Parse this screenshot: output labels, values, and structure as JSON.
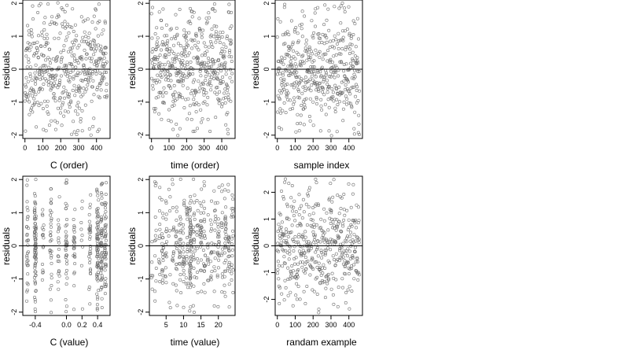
{
  "chart_data": [
    {
      "type": "scatter",
      "xlabel": "C (order)",
      "ylabel": "residuals",
      "xlim": [
        -12,
        476
      ],
      "ylim": [
        -2.1,
        2.1
      ],
      "xticks": [
        0,
        100,
        200,
        300,
        400
      ],
      "xtick_labels": [
        "0",
        "100",
        "200",
        "300",
        "400"
      ],
      "yticks": [
        -2,
        -1,
        0,
        1,
        2
      ],
      "ytick_labels": [
        "-2",
        "-1",
        "0",
        "1",
        "2"
      ],
      "hline": 0,
      "grid": false,
      "series": [
        {
          "gen": "index",
          "n": 460,
          "seed": 11
        }
      ]
    },
    {
      "type": "scatter",
      "xlabel": "time (order)",
      "ylabel": "residuals",
      "xlim": [
        -12,
        476
      ],
      "ylim": [
        -2.1,
        2.1
      ],
      "xticks": [
        0,
        100,
        200,
        300,
        400
      ],
      "xtick_labels": [
        "0",
        "100",
        "200",
        "300",
        "400"
      ],
      "yticks": [
        -2,
        -1,
        0,
        1,
        2
      ],
      "ytick_labels": [
        "-2",
        "-1",
        "0",
        "1",
        "2"
      ],
      "hline": 0,
      "grid": false,
      "series": [
        {
          "gen": "index",
          "n": 460,
          "seed": 23
        }
      ]
    },
    {
      "type": "scatter",
      "xlabel": "sample index",
      "ylabel": "residuals",
      "xlim": [
        -12,
        476
      ],
      "ylim": [
        -2.1,
        2.1
      ],
      "xticks": [
        0,
        100,
        200,
        300,
        400
      ],
      "xtick_labels": [
        "0",
        "100",
        "200",
        "300",
        "400"
      ],
      "yticks": [
        -2,
        -1,
        0,
        1,
        2
      ],
      "ytick_labels": [
        "-2",
        "-1",
        "0",
        "1",
        "2"
      ],
      "hline": 0,
      "grid": false,
      "series": [
        {
          "gen": "index",
          "n": 460,
          "seed": 37
        }
      ]
    },
    {
      "type": "scatter",
      "xlabel": "C (value)",
      "ylabel": "residuals",
      "xlim": [
        -0.56,
        0.56
      ],
      "ylim": [
        -2.1,
        2.1
      ],
      "xticks": [
        -0.4,
        0.0,
        0.2,
        0.4
      ],
      "xtick_labels": [
        "-0.4",
        "0.0",
        "0.2",
        "0.4"
      ],
      "yticks": [
        -2,
        -1,
        0,
        1,
        2
      ],
      "ytick_labels": [
        "-2",
        "-1",
        "0",
        "1",
        "2"
      ],
      "hline": 0,
      "grid": false,
      "series": [
        {
          "gen": "discrete",
          "n": 460,
          "seed": 41,
          "levels": [
            -0.5,
            -0.4,
            -0.3,
            -0.2,
            -0.1,
            0.0,
            0.1,
            0.2,
            0.3,
            0.4,
            0.45,
            0.5
          ],
          "weights": [
            6,
            8,
            2,
            3,
            2,
            4,
            3,
            1,
            3,
            7,
            6,
            6
          ]
        }
      ]
    },
    {
      "type": "scatter",
      "xlabel": "time (value)",
      "ylabel": "residuals",
      "xlim": [
        0.2,
        24.8
      ],
      "ylim": [
        -2.1,
        2.1
      ],
      "xticks": [
        5,
        10,
        15,
        20
      ],
      "xtick_labels": [
        "5",
        "10",
        "15",
        "20"
      ],
      "yticks": [
        -2,
        -1,
        0,
        1,
        2
      ],
      "ytick_labels": [
        "-2",
        "-1",
        "0",
        "1",
        "2"
      ],
      "hline": 0,
      "grid": false,
      "series": [
        {
          "gen": "discrete",
          "n": 460,
          "seed": 53,
          "levels": [
            1,
            2,
            3,
            4,
            5,
            6,
            7,
            8,
            9,
            10,
            11,
            12,
            13,
            14,
            15,
            16,
            17,
            18,
            19,
            20,
            21,
            22,
            23,
            24
          ],
          "weights": [
            1,
            2,
            2,
            3,
            3,
            2,
            3,
            4,
            3,
            3,
            3,
            8,
            3,
            2,
            3,
            3,
            2,
            3,
            3,
            3,
            3,
            3,
            3,
            4
          ]
        }
      ]
    },
    {
      "type": "scatter",
      "xlabel": "randam example",
      "ylabel": "residuals",
      "xlim": [
        -12,
        476
      ],
      "ylim": [
        -2.6,
        2.6
      ],
      "xticks": [
        0,
        100,
        200,
        300,
        400
      ],
      "xtick_labels": [
        "0",
        "100",
        "200",
        "300",
        "400"
      ],
      "yticks": [
        -2,
        -1,
        0,
        1,
        2
      ],
      "ytick_labels": [
        "-2",
        "-1",
        "0",
        "1",
        "2"
      ],
      "hline": 0,
      "grid": false,
      "series": [
        {
          "gen": "index",
          "n": 460,
          "seed": 67,
          "spread": 1.0
        }
      ]
    }
  ]
}
